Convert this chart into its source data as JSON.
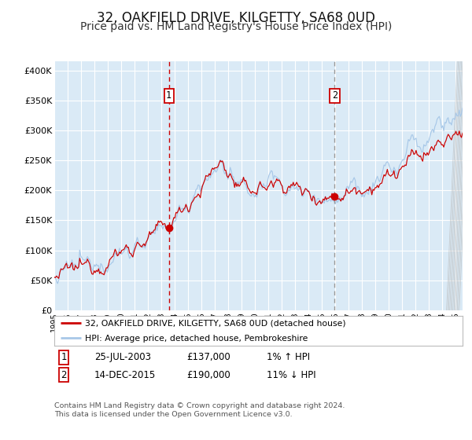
{
  "title": "32, OAKFIELD DRIVE, KILGETTY, SA68 0UD",
  "subtitle": "Price paid vs. HM Land Registry's House Price Index (HPI)",
  "title_fontsize": 12,
  "subtitle_fontsize": 10,
  "ylabel_ticks": [
    "£0",
    "£50K",
    "£100K",
    "£150K",
    "£200K",
    "£250K",
    "£300K",
    "£350K",
    "£400K"
  ],
  "ytick_values": [
    0,
    50000,
    100000,
    150000,
    200000,
    250000,
    300000,
    350000,
    400000
  ],
  "ylim": [
    0,
    415000
  ],
  "xlim_start": 1995.0,
  "xlim_end": 2025.5,
  "background_color": "#ffffff",
  "plot_bg_color": "#daeaf6",
  "grid_color": "#ffffff",
  "hpi_line_color": "#a8c8e8",
  "price_line_color": "#cc0000",
  "vline1_color": "#cc0000",
  "vline2_color": "#999999",
  "vline1_x": 2003.56,
  "vline2_x": 2015.95,
  "point1_x": 2003.56,
  "point1_y": 137000,
  "point2_x": 2015.95,
  "point2_y": 190000,
  "legend_line1": "32, OAKFIELD DRIVE, KILGETTY, SA68 0UD (detached house)",
  "legend_line2": "HPI: Average price, detached house, Pembrokeshire",
  "table_rows": [
    [
      "1",
      "25-JUL-2003",
      "£137,000",
      "1% ↑ HPI"
    ],
    [
      "2",
      "14-DEC-2015",
      "£190,000",
      "11% ↓ HPI"
    ]
  ],
  "footer_text": "Contains HM Land Registry data © Crown copyright and database right 2024.\nThis data is licensed under the Open Government Licence v3.0.",
  "xticks": [
    1995,
    1996,
    1997,
    1998,
    1999,
    2000,
    2001,
    2002,
    2003,
    2004,
    2005,
    2006,
    2007,
    2008,
    2009,
    2010,
    2011,
    2012,
    2013,
    2014,
    2015,
    2016,
    2017,
    2018,
    2019,
    2020,
    2021,
    2022,
    2023,
    2024,
    2025
  ]
}
